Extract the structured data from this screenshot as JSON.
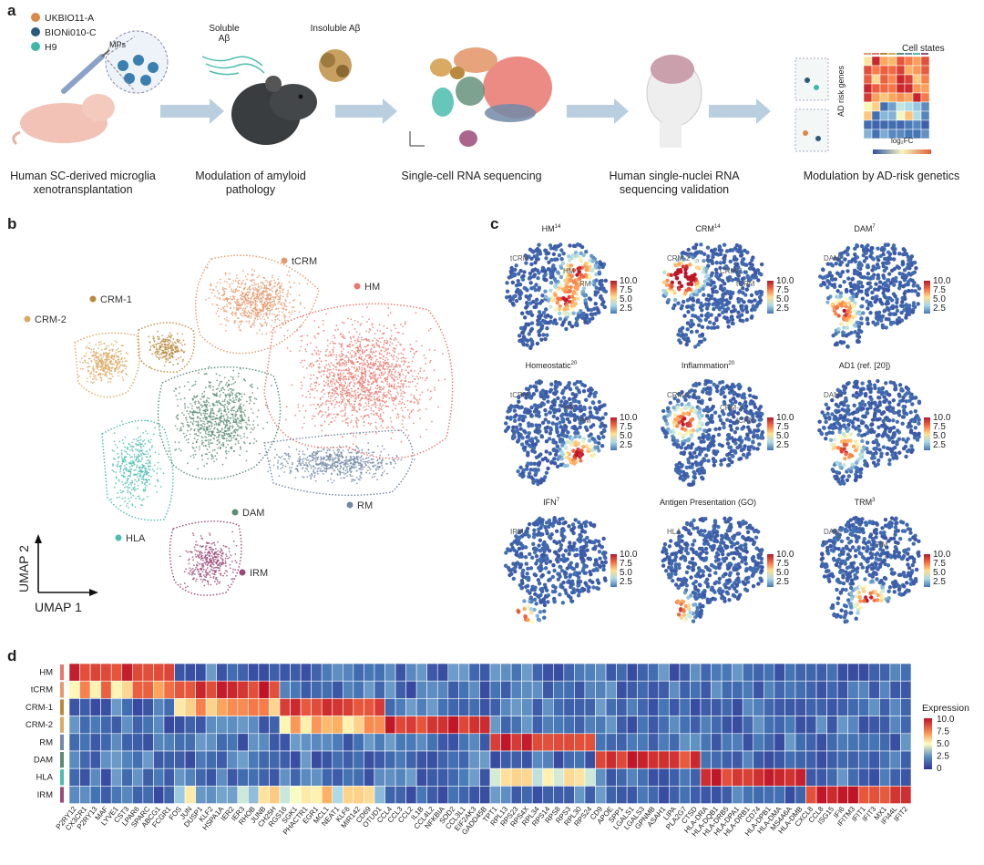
{
  "panel_labels": {
    "a": "a",
    "b": "b",
    "c": "c",
    "d": "d"
  },
  "panel_a": {
    "lines": [
      {
        "name": "UKBIO11-A",
        "color": "#d98a4a"
      },
      {
        "name": "BIONi010-C",
        "color": "#2a5b7a"
      },
      {
        "name": "H9",
        "color": "#3cb8a8"
      }
    ],
    "mps_label": "MPs",
    "soluble": "Soluble Aβ",
    "insoluble": "Insoluble Aβ",
    "steps": [
      "Human SC-derived microglia xenotransplantation",
      "Modulation of amyloid pathology",
      "Single-cell RNA sequencing",
      "Human single-nuclei RNA sequencing validation",
      "Modulation by AD-risk genetics"
    ],
    "cell_states_label": "Cell states",
    "ad_risk_label": "AD risk genes",
    "log2fc_label": "log₂FC"
  },
  "panel_b": {
    "xlabel": "UMAP 1",
    "ylabel": "UMAP 2",
    "clusters": [
      {
        "name": "tCRM",
        "color": "#e49a6e"
      },
      {
        "name": "HM",
        "color": "#e9776e"
      },
      {
        "name": "CRM-1",
        "color": "#b98a3e"
      },
      {
        "name": "CRM-2",
        "color": "#d9aa64"
      },
      {
        "name": "DAM",
        "color": "#5c8c74"
      },
      {
        "name": "RM",
        "color": "#7389a8"
      },
      {
        "name": "HLA",
        "color": "#4cbcae"
      },
      {
        "name": "IRM",
        "color": "#9a4a78"
      }
    ]
  },
  "panel_c": {
    "scale_ticks": [
      "10.0",
      "7.5",
      "5.0",
      "2.5"
    ],
    "plots": [
      {
        "title": "HM",
        "sup": "14",
        "labels": [
          "tCRM",
          "HM",
          "RM"
        ]
      },
      {
        "title": "CRM",
        "sup": "14",
        "labels": [
          "CRM-2",
          "CRM-1",
          "tCRM"
        ]
      },
      {
        "title": "DAM",
        "sup": "7",
        "labels": [
          "DAM"
        ]
      },
      {
        "title": "Homeostatic",
        "sup": "20",
        "labels": [
          "tCRM",
          "HM",
          "RM"
        ]
      },
      {
        "title": "Inflammation",
        "sup": "20",
        "labels": [
          "CRM-2",
          "CRM-1",
          "tCRM"
        ]
      },
      {
        "title": "AD1 (ref. [20])",
        "sup": "",
        "labels": [
          "DAM"
        ]
      },
      {
        "title": "IFN",
        "sup": "7",
        "labels": [
          "IRM"
        ]
      },
      {
        "title": "Antigen Presentation (GO)",
        "sup": "",
        "labels": [
          "HLA"
        ]
      },
      {
        "title": "TRM",
        "sup": "3",
        "labels": [
          "DAM",
          "RM"
        ]
      }
    ]
  },
  "chart_data": {
    "type": "heatmap",
    "rows": [
      "HM",
      "tCRM",
      "CRM-1",
      "CRM-2",
      "RM",
      "DAM",
      "HLA",
      "IRM"
    ],
    "columns": [
      "P2RY12",
      "CX3CR1",
      "P2RY13",
      "MAF",
      "LYVE1",
      "CST3",
      "LPAR6",
      "SPARC",
      "ABCG1",
      "FCGR1",
      "FOS",
      "JUN",
      "DUSP1",
      "KLF2",
      "HSPA1A",
      "IER2",
      "IER3",
      "RHOB",
      "JUNB",
      "CH25H",
      "RGS16",
      "SGK1",
      "PHACTR1",
      "EGR1",
      "MCL1",
      "NEAT1",
      "KLF6",
      "MIR142",
      "CD69",
      "OTUD1",
      "CCL4",
      "CCL3",
      "CCL2",
      "IL1B",
      "CCL4L2",
      "NFKBIA",
      "SOD2",
      "CCL3L1",
      "EIF2AK3",
      "GADD45B",
      "TPT1",
      "RPL13",
      "RPS23",
      "RPS4X",
      "RPL34",
      "RPS14",
      "RPS8",
      "RPS3",
      "RPL30",
      "RPS24",
      "CD9",
      "APOE",
      "SPP1",
      "LGALS1",
      "LGALS3",
      "GPNMB",
      "ASAH1",
      "LIPA",
      "PLA2G7",
      "CTSD",
      "HLA-DRA",
      "HLA-DQB1",
      "HLA-DRB5",
      "HLA-DPA1",
      "HLA-DRB1",
      "CD74",
      "HLA-DPB1",
      "HLA-DMA",
      "MS4A6A",
      "HLA-DMB",
      "CXCL8",
      "CCL8",
      "ISG15",
      "IFI6",
      "IFITM3",
      "IFIT1",
      "IFIT3",
      "MX1",
      "IFI44L",
      "IFIT2"
    ],
    "blocks": [
      {
        "row": "HM",
        "cols": [
          0,
          9
        ]
      },
      {
        "row": "tCRM",
        "cols": [
          10,
          19
        ]
      },
      {
        "row": "CRM-1",
        "cols": [
          20,
          29
        ]
      },
      {
        "row": "CRM-2",
        "cols": [
          30,
          39
        ]
      },
      {
        "row": "RM",
        "cols": [
          40,
          49
        ]
      },
      {
        "row": "DAM",
        "cols": [
          50,
          59
        ]
      },
      {
        "row": "HLA",
        "cols": [
          60,
          69
        ]
      },
      {
        "row": "IRM",
        "cols": [
          70,
          79
        ]
      }
    ],
    "legend_title": "Expression",
    "legend_ticks": [
      "10.0",
      "7.5",
      "5.0",
      "2.5",
      "0"
    ],
    "vmin": 0,
    "vmax": 10
  }
}
